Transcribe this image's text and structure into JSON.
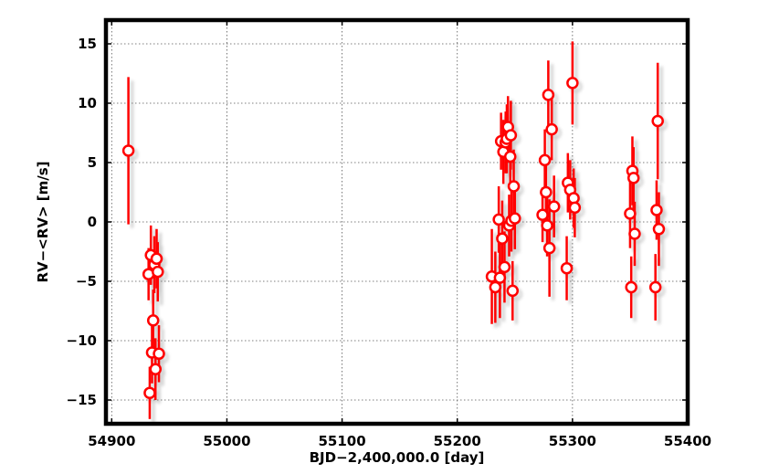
{
  "chart_data": {
    "type": "scatter",
    "xlabel": "BJD−2,400,000.0 [day]",
    "ylabel": "RV−<RV> [m/s]",
    "xlim": [
      54895,
      55400
    ],
    "ylim": [
      -17,
      17
    ],
    "xticks": [
      54900,
      55000,
      55100,
      55200,
      55300,
      55400
    ],
    "yticks": [
      -15,
      -10,
      -5,
      0,
      5,
      10,
      15
    ],
    "xtick_labels": [
      "54900",
      "55000",
      "55100",
      "55200",
      "55300",
      "55400"
    ],
    "ytick_labels": [
      "−15",
      "−10",
      "−5",
      "0",
      "5",
      "10",
      "15"
    ],
    "grid": true,
    "marker": "open-circle",
    "color": "#ff0000",
    "series": [
      {
        "points": [
          {
            "x": 54914.5,
            "y": 6.0,
            "err": 6.2
          },
          {
            "x": 54932.0,
            "y": -4.4,
            "err": 2.2
          },
          {
            "x": 54933.0,
            "y": -14.4,
            "err": 2.2
          },
          {
            "x": 54934.0,
            "y": -2.8,
            "err": 2.5
          },
          {
            "x": 54935.0,
            "y": -11.0,
            "err": 2.6
          },
          {
            "x": 54936.0,
            "y": -8.3,
            "err": 2.6
          },
          {
            "x": 54937.0,
            "y": -3.6,
            "err": 2.4
          },
          {
            "x": 54938.0,
            "y": -12.4,
            "err": 2.6
          },
          {
            "x": 54939.0,
            "y": -3.1,
            "err": 2.5
          },
          {
            "x": 54940.0,
            "y": -4.2,
            "err": 2.5
          },
          {
            "x": 54941.0,
            "y": -11.1,
            "err": 2.4
          },
          {
            "x": 55230.0,
            "y": -4.6,
            "err": 4.0
          },
          {
            "x": 55233.0,
            "y": -5.5,
            "err": 3.0
          },
          {
            "x": 55236.0,
            "y": 0.2,
            "err": 2.8
          },
          {
            "x": 55237.0,
            "y": -4.7,
            "err": 3.4
          },
          {
            "x": 55238.0,
            "y": 6.8,
            "err": 2.4
          },
          {
            "x": 55239.0,
            "y": -1.4,
            "err": 3.2
          },
          {
            "x": 55240.0,
            "y": 5.9,
            "err": 2.7
          },
          {
            "x": 55241.0,
            "y": -3.8,
            "err": 3.0
          },
          {
            "x": 55242.0,
            "y": 6.7,
            "err": 2.6
          },
          {
            "x": 55243.0,
            "y": 7.0,
            "err": 2.9
          },
          {
            "x": 55244.0,
            "y": 8.0,
            "err": 2.6
          },
          {
            "x": 55245.0,
            "y": -0.3,
            "err": 2.6
          },
          {
            "x": 55246.0,
            "y": 5.5,
            "err": 2.8
          },
          {
            "x": 55246.5,
            "y": 7.3,
            "err": 2.9
          },
          {
            "x": 55247.0,
            "y": 0.1,
            "err": 2.6
          },
          {
            "x": 55248.0,
            "y": -5.8,
            "err": 2.5
          },
          {
            "x": 55249.0,
            "y": 3.0,
            "err": 3.1
          },
          {
            "x": 55250.0,
            "y": 0.3,
            "err": 2.6
          },
          {
            "x": 55274.0,
            "y": 0.6,
            "err": 2.3
          },
          {
            "x": 55276.0,
            "y": 5.2,
            "err": 2.6
          },
          {
            "x": 55277.0,
            "y": 2.5,
            "err": 2.6
          },
          {
            "x": 55278.0,
            "y": -0.3,
            "err": 2.6
          },
          {
            "x": 55279.0,
            "y": 10.7,
            "err": 2.9
          },
          {
            "x": 55280.0,
            "y": -2.2,
            "err": 4.1
          },
          {
            "x": 55282.0,
            "y": 7.8,
            "err": 2.6
          },
          {
            "x": 55284.0,
            "y": 1.3,
            "err": 2.6
          },
          {
            "x": 55295.0,
            "y": -3.9,
            "err": 2.7
          },
          {
            "x": 55296.0,
            "y": 3.3,
            "err": 2.5
          },
          {
            "x": 55298.0,
            "y": 2.7,
            "err": 2.5
          },
          {
            "x": 55300.0,
            "y": 11.7,
            "err": 3.5
          },
          {
            "x": 55301.0,
            "y": 2.0,
            "err": 2.5
          },
          {
            "x": 55302.0,
            "y": 1.2,
            "err": 2.5
          },
          {
            "x": 55350.0,
            "y": 0.7,
            "err": 2.9
          },
          {
            "x": 55351.0,
            "y": -5.5,
            "err": 2.6
          },
          {
            "x": 55352.0,
            "y": 4.3,
            "err": 2.9
          },
          {
            "x": 55353.0,
            "y": 3.7,
            "err": 2.6
          },
          {
            "x": 55354.0,
            "y": -1.0,
            "err": 2.7
          },
          {
            "x": 55372.0,
            "y": -5.5,
            "err": 2.8
          },
          {
            "x": 55373.0,
            "y": 1.0,
            "err": 2.5
          },
          {
            "x": 55374.0,
            "y": 8.5,
            "err": 4.9
          },
          {
            "x": 55375.0,
            "y": -0.6,
            "err": 3.1
          }
        ]
      }
    ]
  }
}
